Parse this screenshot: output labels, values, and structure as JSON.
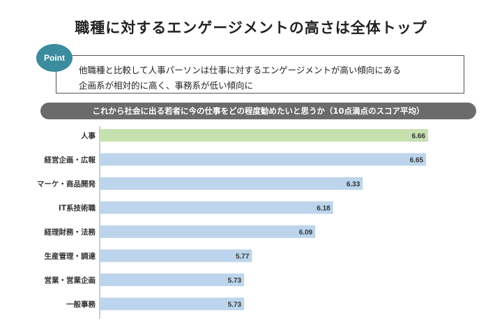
{
  "title": "職種に対するエンゲージメントの高さは全体トップ",
  "point": {
    "badge": "Point",
    "lines": [
      "他職種と比較して人事パーソンは仕事に対するエンゲージメントが高い傾向にある",
      "企画系が相対的に高く、事務系が低い傾向に"
    ]
  },
  "banner": "これから社会に出る若者に今の仕事をどの程度勧めたいと思うか（10点満点のスコア平均）",
  "colors": {
    "highlight": "#c7e0b0",
    "default": "#bcd5ec",
    "badge": "#3a8c9e",
    "banner": "#6b6b6b"
  },
  "chart_data": {
    "type": "bar",
    "orientation": "horizontal",
    "categories": [
      "人事",
      "経営企画・広報",
      "マーケ・商品開発",
      "IT系技術職",
      "経理財務・法務",
      "生産管理・調達",
      "営業・営業企画",
      "一般事務"
    ],
    "values": [
      6.66,
      6.65,
      6.33,
      6.18,
      6.09,
      5.77,
      5.73,
      5.73
    ],
    "value_labels": [
      "6.66",
      "6.65",
      "6.33",
      "6.18",
      "6.09",
      "5.77",
      "5.73",
      "5.73"
    ],
    "highlight_index": 0,
    "xlim": [
      5.0,
      6.9
    ],
    "grid": false
  }
}
